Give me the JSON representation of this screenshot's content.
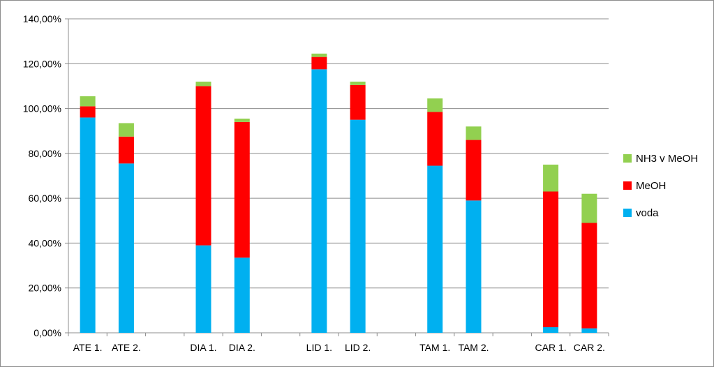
{
  "chart_data": {
    "type": "bar",
    "stacked": true,
    "title": "",
    "xlabel": "",
    "ylabel": "",
    "ylim": [
      0,
      140
    ],
    "y_ticks": [
      0,
      20,
      40,
      60,
      80,
      100,
      120,
      140
    ],
    "y_tick_labels": [
      "0,00%",
      "20,00%",
      "40,00%",
      "60,00%",
      "80,00%",
      "100,00%",
      "120,00%",
      "140,00%"
    ],
    "grid": true,
    "legend_position": "right",
    "categories": [
      "ATE 1.",
      "ATE 2.",
      "",
      "DIA 1.",
      "DIA 2.",
      "",
      "LID 1.",
      "LID 2.",
      "",
      "TAM 1.",
      "TAM 2.",
      "",
      "CAR 1.",
      "CAR 2."
    ],
    "series": [
      {
        "name": "voda",
        "color": "#00b0f0",
        "values": [
          96,
          75.5,
          null,
          39,
          33.5,
          null,
          117.5,
          95,
          null,
          74.5,
          59,
          null,
          2.5,
          2
        ]
      },
      {
        "name": "MeOH",
        "color": "#ff0000",
        "values": [
          5,
          12,
          null,
          71,
          60.5,
          null,
          5.5,
          15.5,
          null,
          24,
          27,
          null,
          60.5,
          47
        ]
      },
      {
        "name": "NH3 v MeOH",
        "color": "#92d050",
        "values": [
          4.5,
          6,
          null,
          2,
          1.5,
          null,
          1.5,
          1.5,
          null,
          6,
          6,
          null,
          12,
          13
        ]
      }
    ],
    "legend_order": [
      "NH3 v MeOH",
      "MeOH",
      "voda"
    ]
  }
}
